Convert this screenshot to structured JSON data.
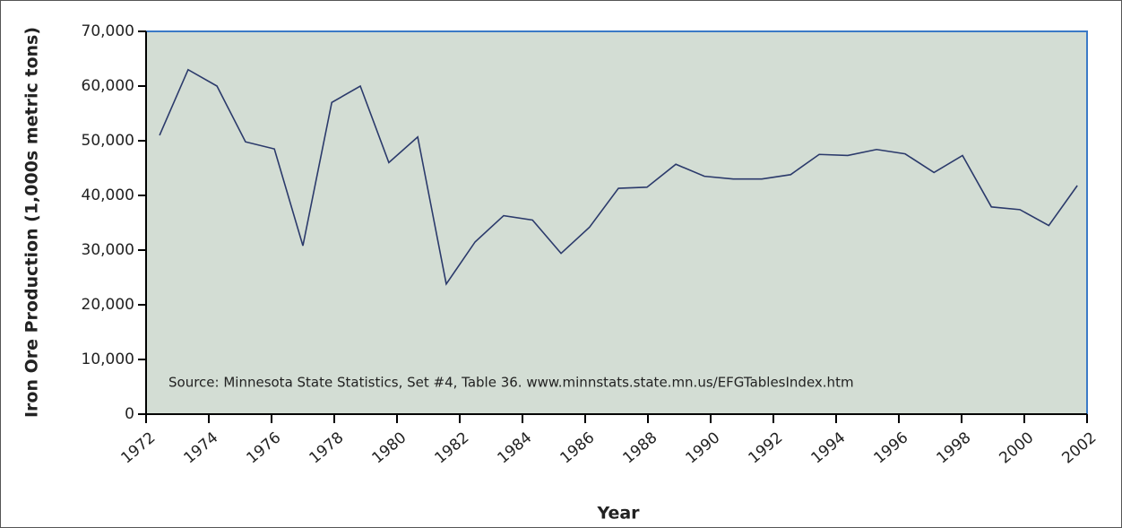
{
  "chart_data": {
    "type": "line",
    "x_label": "Year",
    "y_label": "Iron Ore Production (1,000s metric tons)",
    "annotation": "Source:  Minnesota State Statistics, Set #4, Table 36. www.minnstats.state.mn.us/EFGTablesIndex.htm",
    "x": [
      1972.43,
      1973.34,
      1974.26,
      1975.17,
      1976.09,
      1977.0,
      1977.92,
      1978.83,
      1979.74,
      1980.66,
      1981.57,
      1982.49,
      1983.4,
      1984.32,
      1985.23,
      1986.14,
      1987.06,
      1987.97,
      1988.89,
      1989.8,
      1990.72,
      1991.63,
      1992.55,
      1993.46,
      1994.37,
      1995.29,
      1996.2,
      1997.12,
      1998.03,
      1998.95,
      1999.86,
      2000.78,
      2001.69
    ],
    "series": [
      {
        "color": "#2b3a6b",
        "values": [
          51000,
          63000,
          60000,
          49800,
          48500,
          30800,
          57000,
          60000,
          46000,
          50700,
          23800,
          31500,
          36300,
          35500,
          29400,
          34200,
          41300,
          41500,
          45700,
          43500,
          43000,
          43000,
          43800,
          47500,
          47300,
          48400,
          47600,
          44200,
          47300,
          37900,
          37400,
          34500,
          41800
        ]
      }
    ],
    "xlim": [
      1972,
      2002
    ],
    "xticks": [
      1972,
      1974,
      1976,
      1978,
      1980,
      1982,
      1984,
      1986,
      1988,
      1990,
      1992,
      1994,
      1996,
      1998,
      2000,
      2002
    ],
    "ylim": [
      0,
      70000
    ],
    "yticks": [
      0,
      {
        "value": 10000,
        "label": "10,000"
      },
      {
        "value": 20000,
        "label": "20,000"
      },
      {
        "value": 30000,
        "label": "30,000"
      },
      {
        "value": 40000,
        "label": "40,000"
      },
      {
        "value": 50000,
        "label": "50,000"
      },
      {
        "value": 60000,
        "label": "60,000"
      },
      {
        "value": 70000,
        "label": "70,000"
      }
    ],
    "plot_background": "#d3ddd4",
    "frame_color": "#3b7ac6"
  }
}
